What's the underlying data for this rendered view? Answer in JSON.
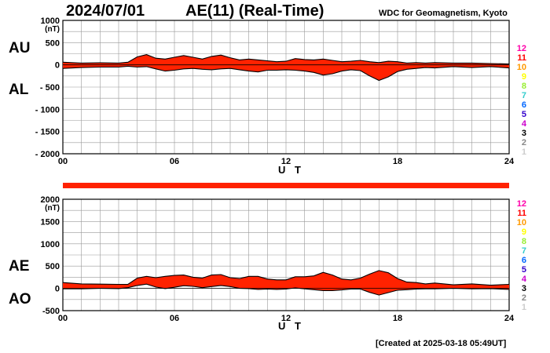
{
  "header": {
    "date": "2024/07/01",
    "title": "AE(11) (Real-Time)",
    "credit": "WDC for Geomagnetism, Kyoto"
  },
  "footer": {
    "created": "[Created at 2025-03-18 05:49UT]"
  },
  "kp_legend": {
    "labels": [
      "12",
      "11",
      "10",
      "9",
      "8",
      "7",
      "6",
      "5",
      "4",
      "3",
      "2",
      "1"
    ],
    "colors": [
      "#ff00aa",
      "#ff0000",
      "#ff9900",
      "#ffff00",
      "#99ee33",
      "#33cccc",
      "#0066ff",
      "#3300cc",
      "#cc00cc",
      "#000000",
      "#888888",
      "#cccccc"
    ]
  },
  "colors": {
    "fill": "#ff2200",
    "line": "#000000",
    "grid": "#999999"
  },
  "chart_data": [
    {
      "type": "area",
      "panel_labels": [
        "AU",
        "AL"
      ],
      "ylabel": "(nT)",
      "xlabel": "U T",
      "xlim": [
        0,
        24
      ],
      "xticks": [
        "00",
        "06",
        "12",
        "18",
        "24"
      ],
      "ylim": [
        -2000,
        1000
      ],
      "yticks": [
        "1000",
        "500",
        "0",
        "- 500",
        "- 1000",
        "- 1500",
        "- 2000"
      ],
      "grid": true,
      "x": [
        0,
        1,
        2,
        3,
        3.5,
        4,
        4.5,
        5,
        5.5,
        6,
        6.5,
        7,
        7.5,
        8,
        8.5,
        9,
        9.5,
        10,
        10.5,
        11,
        11.5,
        12,
        12.5,
        13,
        13.5,
        14,
        14.5,
        15,
        15.5,
        16,
        16.5,
        17,
        17.5,
        18,
        18.5,
        19,
        19.5,
        20,
        21,
        22,
        23,
        24
      ],
      "series": [
        {
          "values": [
            60,
            40,
            45,
            40,
            60,
            180,
            230,
            150,
            130,
            170,
            210,
            170,
            130,
            190,
            220,
            160,
            110,
            130,
            110,
            90,
            70,
            80,
            140,
            120,
            110,
            130,
            100,
            70,
            80,
            100,
            70,
            50,
            80,
            70,
            40,
            50,
            40,
            50,
            40,
            40,
            30,
            20
          ]
        },
        {
          "values": [
            -80,
            -60,
            -50,
            -50,
            -30,
            -50,
            -40,
            -90,
            -140,
            -120,
            -90,
            -80,
            -100,
            -110,
            -90,
            -80,
            -110,
            -140,
            -160,
            -120,
            -120,
            -110,
            -120,
            -140,
            -170,
            -230,
            -200,
            -140,
            -110,
            -130,
            -250,
            -350,
            -270,
            -150,
            -100,
            -80,
            -60,
            -70,
            -40,
            -60,
            -40,
            -70
          ]
        }
      ]
    },
    {
      "type": "area",
      "panel_labels": [
        "AE",
        "AO"
      ],
      "ylabel": "(nT)",
      "xlabel": "U T",
      "xlim": [
        0,
        24
      ],
      "xticks": [
        "00",
        "06",
        "12",
        "18",
        "24"
      ],
      "ylim": [
        -500,
        2000
      ],
      "yticks": [
        "2000",
        "1500",
        "1000",
        "500",
        "0",
        "-500"
      ],
      "grid": true,
      "x": [
        0,
        1,
        2,
        3,
        3.5,
        4,
        4.5,
        5,
        5.5,
        6,
        6.5,
        7,
        7.5,
        8,
        8.5,
        9,
        9.5,
        10,
        10.5,
        11,
        11.5,
        12,
        12.5,
        13,
        13.5,
        14,
        14.5,
        15,
        15.5,
        16,
        16.5,
        17,
        17.5,
        18,
        18.5,
        19,
        19.5,
        20,
        21,
        22,
        23,
        24
      ],
      "series": [
        {
          "values": [
            130,
            100,
            95,
            90,
            90,
            230,
            270,
            240,
            270,
            290,
            300,
            250,
            230,
            300,
            310,
            240,
            220,
            270,
            270,
            210,
            190,
            190,
            260,
            260,
            280,
            360,
            300,
            210,
            190,
            230,
            320,
            400,
            350,
            220,
            140,
            130,
            100,
            120,
            80,
            100,
            70,
            90
          ]
        },
        {
          "values": [
            -10,
            -10,
            0,
            -5,
            15,
            65,
            95,
            30,
            -5,
            25,
            60,
            45,
            15,
            40,
            65,
            40,
            0,
            -5,
            -25,
            -15,
            -25,
            -15,
            10,
            -10,
            -30,
            -50,
            -50,
            -35,
            -15,
            -15,
            -90,
            -150,
            -95,
            -40,
            -30,
            -15,
            -10,
            -10,
            0,
            -10,
            -5,
            -25
          ]
        }
      ]
    }
  ]
}
